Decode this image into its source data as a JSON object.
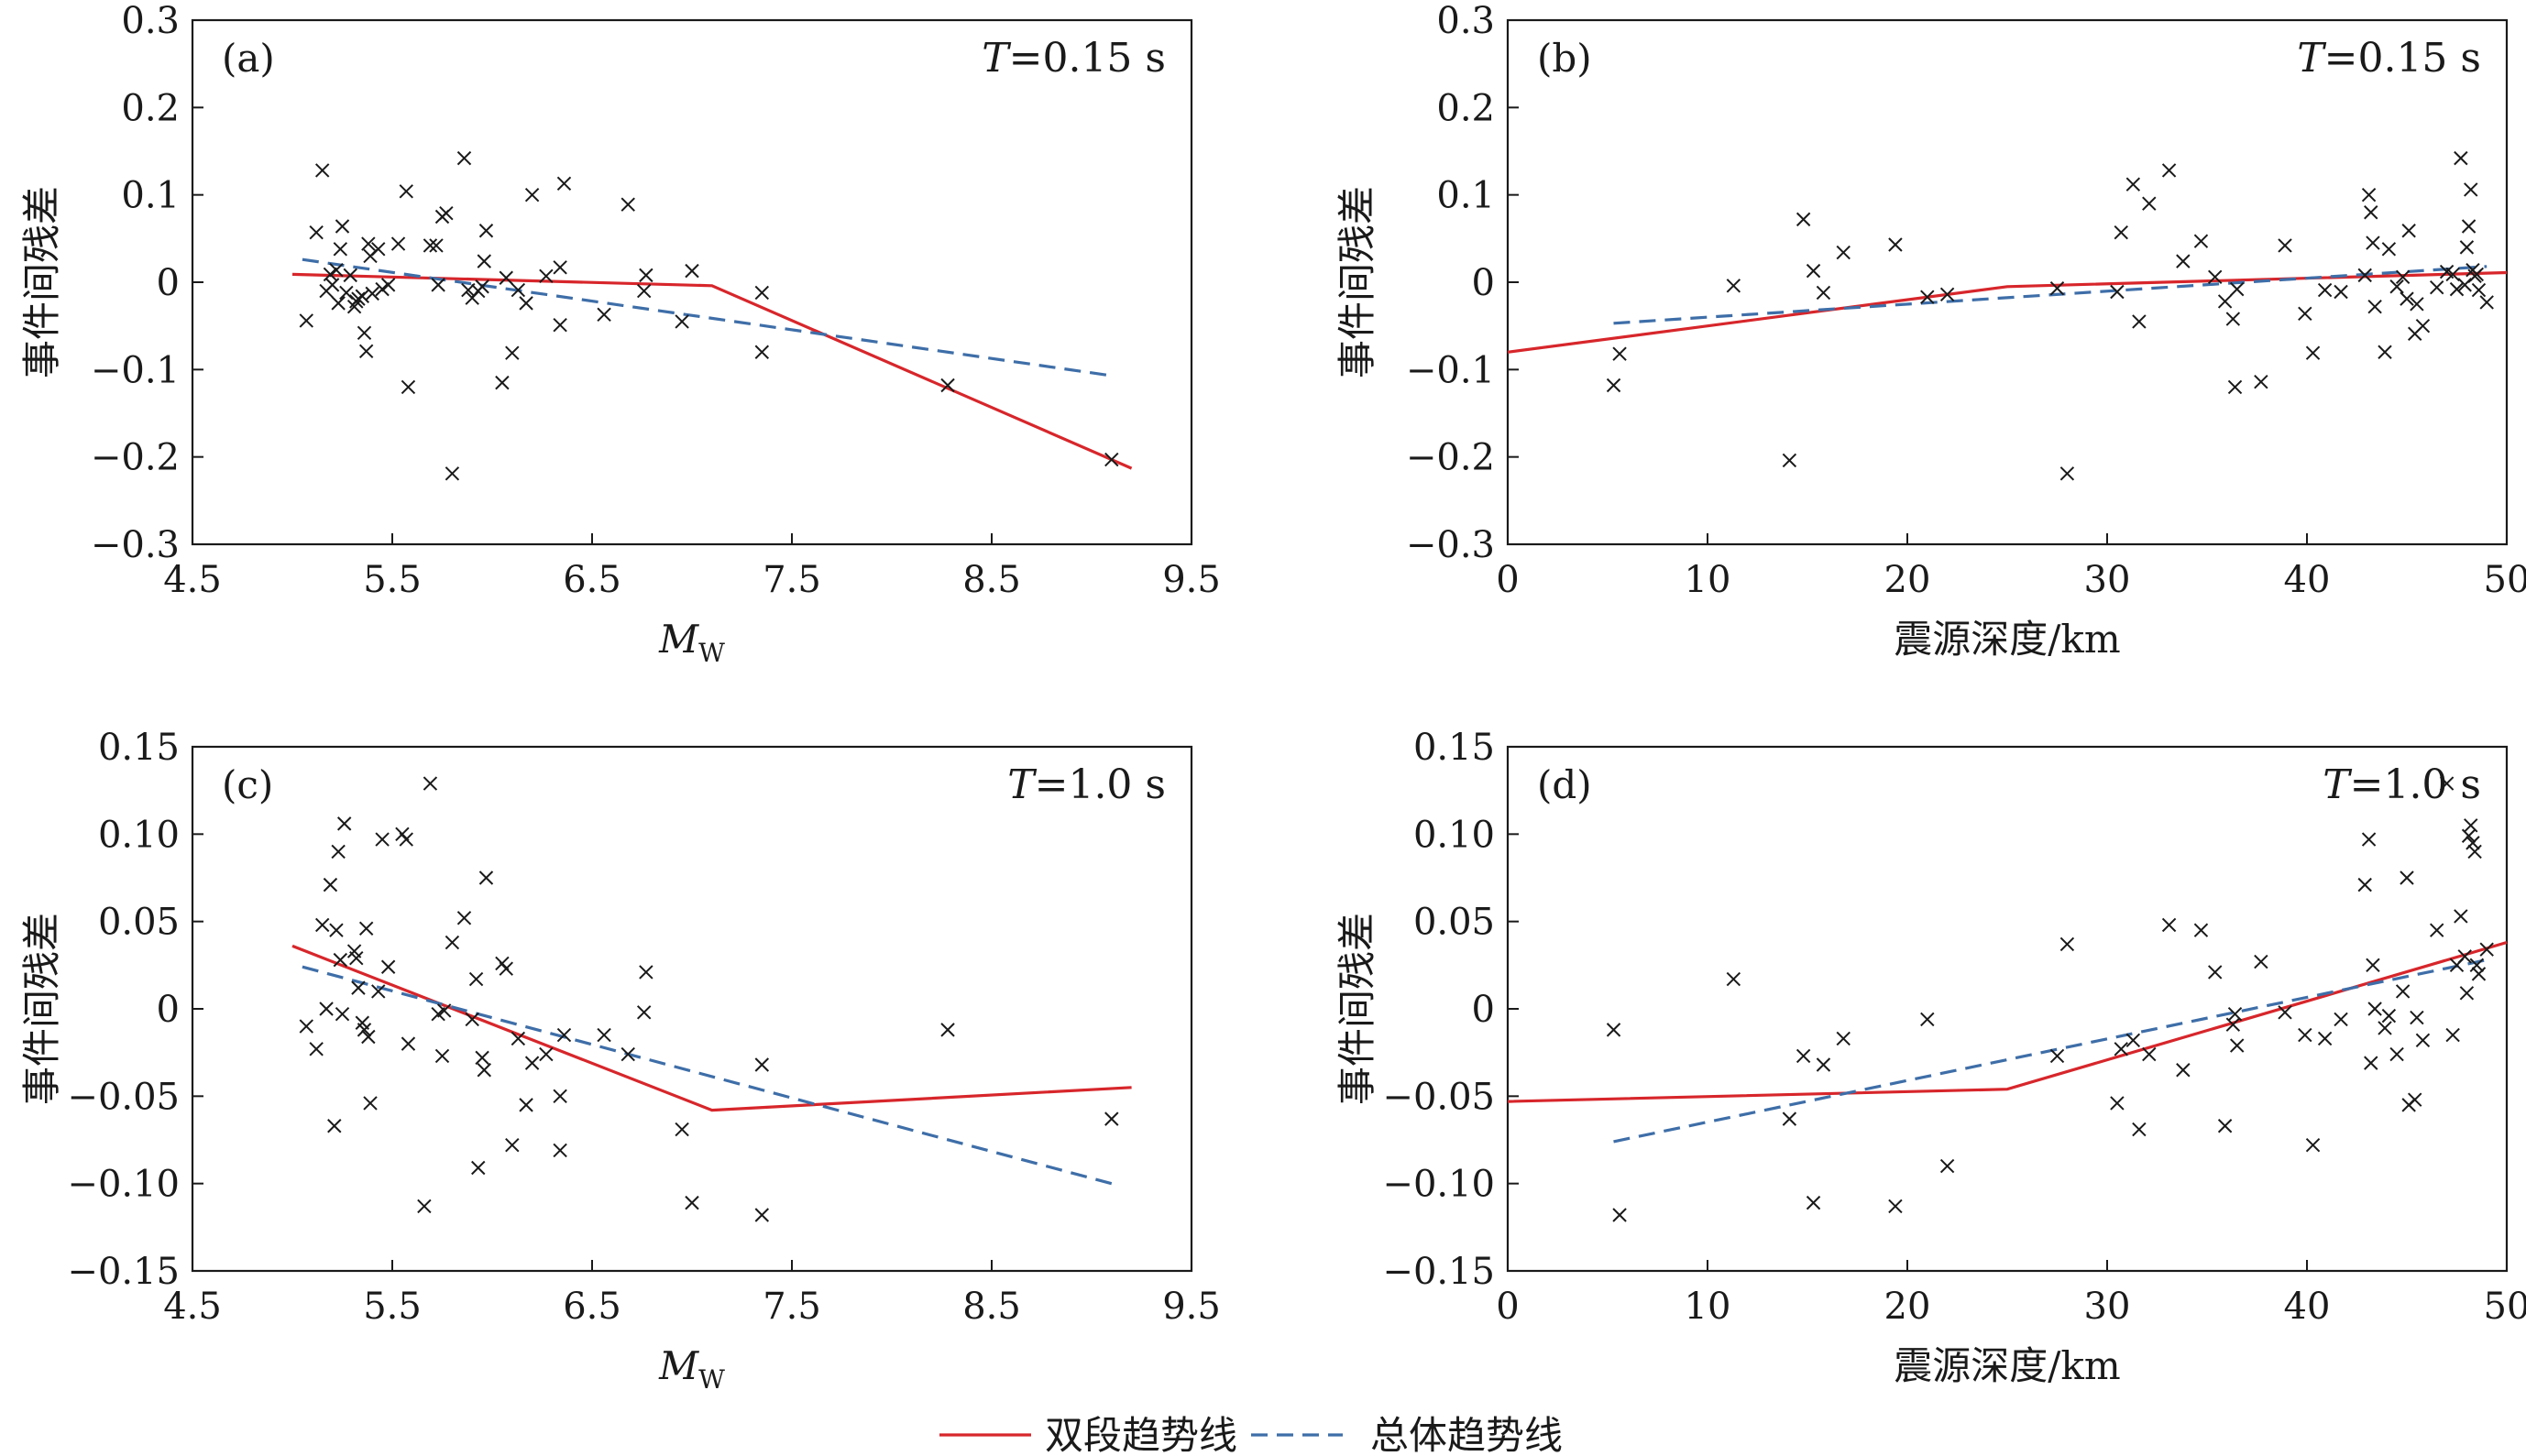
{
  "colors": {
    "two_segment": "#d7262b",
    "overall": "#3e6ea8",
    "marker": "#1a1a1a",
    "axis": "#1a1a1a"
  },
  "legend": {
    "two_segment_label": "双段趋势线",
    "overall_label": "总体趋势线"
  },
  "chart_data": [
    {
      "type": "scatter",
      "panel_label": "(a)",
      "period_label_symbol": "T",
      "period_label_value": "=0.15 s",
      "xlabel_main": "M",
      "xlabel_sub": "W",
      "ylabel": "事件间残差",
      "xlim": [
        4.5,
        9.5
      ],
      "ylim": [
        -0.3,
        0.3
      ],
      "xticks": [
        4.5,
        5.5,
        6.5,
        7.5,
        8.5,
        9.5
      ],
      "yticks": [
        -0.3,
        -0.2,
        -0.1,
        0,
        0.1,
        0.2,
        0.3
      ],
      "xtick_labels": [
        "4.5",
        "5.5",
        "6.5",
        "7.5",
        "8.5",
        "9.5"
      ],
      "ytick_labels": [
        "−0.3",
        "−0.2",
        "−0.1",
        "0",
        "0.1",
        "0.2",
        "0.3"
      ],
      "grid": false,
      "points": [
        [
          5.07,
          -0.044
        ],
        [
          5.12,
          0.057
        ],
        [
          5.15,
          0.128
        ],
        [
          5.17,
          -0.01
        ],
        [
          5.19,
          0.009
        ],
        [
          5.2,
          -0.003
        ],
        [
          5.22,
          0.014
        ],
        [
          5.23,
          -0.024
        ],
        [
          5.24,
          0.038
        ],
        [
          5.25,
          0.064
        ],
        [
          5.27,
          -0.012
        ],
        [
          5.29,
          0.008
        ],
        [
          5.31,
          -0.028
        ],
        [
          5.32,
          -0.022
        ],
        [
          5.33,
          -0.019
        ],
        [
          5.35,
          -0.016
        ],
        [
          5.36,
          -0.058
        ],
        [
          5.37,
          -0.079
        ],
        [
          5.38,
          0.044
        ],
        [
          5.39,
          0.03
        ],
        [
          5.4,
          -0.013
        ],
        [
          5.43,
          0.038
        ],
        [
          5.45,
          -0.008
        ],
        [
          5.48,
          -0.003
        ],
        [
          5.53,
          0.044
        ],
        [
          5.57,
          0.104
        ],
        [
          5.58,
          -0.12
        ],
        [
          5.69,
          0.042
        ],
        [
          5.72,
          0.042
        ],
        [
          5.73,
          -0.003
        ],
        [
          5.75,
          0.075
        ],
        [
          5.77,
          0.079
        ],
        [
          5.8,
          -0.219
        ],
        [
          5.86,
          0.142
        ],
        [
          5.88,
          -0.009
        ],
        [
          5.9,
          -0.018
        ],
        [
          5.93,
          -0.01
        ],
        [
          5.95,
          -0.005
        ],
        [
          5.96,
          0.024
        ],
        [
          5.97,
          0.059
        ],
        [
          6.05,
          -0.115
        ],
        [
          6.07,
          0.005
        ],
        [
          6.1,
          -0.081
        ],
        [
          6.13,
          -0.009
        ],
        [
          6.17,
          -0.024
        ],
        [
          6.2,
          0.1
        ],
        [
          6.27,
          0.007
        ],
        [
          6.34,
          0.017
        ],
        [
          6.34,
          -0.049
        ],
        [
          6.36,
          0.113
        ],
        [
          6.56,
          -0.037
        ],
        [
          6.68,
          0.089
        ],
        [
          6.76,
          -0.01
        ],
        [
          6.77,
          0.008
        ],
        [
          6.95,
          -0.045
        ],
        [
          7.0,
          0.013
        ],
        [
          7.35,
          -0.012
        ],
        [
          7.35,
          -0.08
        ],
        [
          8.28,
          -0.118
        ],
        [
          9.1,
          -0.203
        ]
      ],
      "series": [
        {
          "name": "双段趋势线",
          "x": [
            5.0,
            7.1,
            9.2
          ],
          "values": [
            0.009,
            -0.004,
            -0.213
          ]
        },
        {
          "name": "总体趋势线",
          "x": [
            5.05,
            9.1
          ],
          "values": [
            0.026,
            -0.107
          ]
        }
      ]
    },
    {
      "type": "scatter",
      "panel_label": "(b)",
      "period_label_symbol": "T",
      "period_label_value": "=0.15 s",
      "xlabel_main": "震源深度/km",
      "xlabel_sub": "",
      "ylabel": "事件间残差",
      "xlim": [
        0,
        50
      ],
      "ylim": [
        -0.3,
        0.3
      ],
      "xticks": [
        0,
        10,
        20,
        30,
        40,
        50
      ],
      "yticks": [
        -0.3,
        -0.2,
        -0.1,
        0,
        0.1,
        0.2,
        0.3
      ],
      "xtick_labels": [
        "0",
        "10",
        "20",
        "30",
        "40",
        "50"
      ],
      "ytick_labels": [
        "−0.3",
        "−0.2",
        "−0.1",
        "0",
        "0.1",
        "0.2",
        "0.3"
      ],
      "grid": false,
      "points": [
        [
          5.3,
          -0.118
        ],
        [
          5.6,
          -0.082
        ],
        [
          11.3,
          -0.004
        ],
        [
          14.1,
          -0.204
        ],
        [
          14.8,
          0.072
        ],
        [
          15.3,
          0.013
        ],
        [
          15.8,
          -0.012
        ],
        [
          16.8,
          0.034
        ],
        [
          19.4,
          0.043
        ],
        [
          21.0,
          -0.017
        ],
        [
          22.0,
          -0.014
        ],
        [
          27.5,
          -0.007
        ],
        [
          28.0,
          -0.219
        ],
        [
          30.5,
          -0.011
        ],
        [
          30.7,
          0.057
        ],
        [
          31.3,
          0.112
        ],
        [
          31.6,
          -0.045
        ],
        [
          32.1,
          0.09
        ],
        [
          33.1,
          0.128
        ],
        [
          33.8,
          0.024
        ],
        [
          34.7,
          0.047
        ],
        [
          35.4,
          0.006
        ],
        [
          35.9,
          -0.022
        ],
        [
          36.3,
          -0.042
        ],
        [
          36.4,
          -0.12
        ],
        [
          36.5,
          -0.008
        ],
        [
          37.7,
          -0.114
        ],
        [
          38.9,
          0.042
        ],
        [
          39.9,
          -0.036
        ],
        [
          40.3,
          -0.081
        ],
        [
          40.9,
          -0.009
        ],
        [
          41.7,
          -0.011
        ],
        [
          42.9,
          0.008
        ],
        [
          43.1,
          0.1
        ],
        [
          43.2,
          0.08
        ],
        [
          43.3,
          0.045
        ],
        [
          43.4,
          -0.028
        ],
        [
          43.9,
          -0.08
        ],
        [
          44.1,
          0.038
        ],
        [
          44.5,
          -0.005
        ],
        [
          44.8,
          0.006
        ],
        [
          45.0,
          -0.019
        ],
        [
          45.1,
          0.059
        ],
        [
          45.4,
          -0.059
        ],
        [
          45.5,
          -0.025
        ],
        [
          45.8,
          -0.05
        ],
        [
          46.5,
          -0.006
        ],
        [
          47.0,
          0.012
        ],
        [
          47.3,
          0.009
        ],
        [
          47.5,
          -0.008
        ],
        [
          47.7,
          0.142
        ],
        [
          47.9,
          -0.003
        ],
        [
          48.0,
          0.04
        ],
        [
          48.1,
          0.064
        ],
        [
          48.2,
          0.106
        ],
        [
          48.3,
          0.014
        ],
        [
          48.4,
          0.007
        ],
        [
          48.5,
          0.009
        ],
        [
          48.6,
          -0.009
        ],
        [
          49.0,
          -0.023
        ]
      ],
      "series": [
        {
          "name": "双段趋势线",
          "x": [
            0,
            25,
            50
          ],
          "values": [
            -0.08,
            -0.005,
            0.011
          ]
        },
        {
          "name": "总体趋势线",
          "x": [
            5.3,
            49.0
          ],
          "values": [
            -0.047,
            0.018
          ]
        }
      ]
    },
    {
      "type": "scatter",
      "panel_label": "(c)",
      "period_label_symbol": "T",
      "period_label_value": "=1.0 s",
      "xlabel_main": "M",
      "xlabel_sub": "W",
      "ylabel": "事件间残差",
      "xlim": [
        4.5,
        9.5
      ],
      "ylim": [
        -0.15,
        0.15
      ],
      "xticks": [
        4.5,
        5.5,
        6.5,
        7.5,
        8.5,
        9.5
      ],
      "yticks": [
        -0.15,
        -0.1,
        -0.05,
        0,
        0.05,
        0.1,
        0.15
      ],
      "xtick_labels": [
        "4.5",
        "5.5",
        "6.5",
        "7.5",
        "8.5",
        "9.5"
      ],
      "ytick_labels": [
        "−0.15",
        "−0.10",
        "−0.05",
        "0",
        "0.05",
        "0.10",
        "0.15"
      ],
      "grid": false,
      "points": [
        [
          5.07,
          -0.01
        ],
        [
          5.12,
          -0.023
        ],
        [
          5.15,
          0.048
        ],
        [
          5.17,
          0.0
        ],
        [
          5.19,
          0.071
        ],
        [
          5.21,
          -0.067
        ],
        [
          5.22,
          0.045
        ],
        [
          5.23,
          0.09
        ],
        [
          5.24,
          0.028
        ],
        [
          5.25,
          -0.003
        ],
        [
          5.26,
          0.106
        ],
        [
          5.31,
          0.033
        ],
        [
          5.32,
          0.029
        ],
        [
          5.33,
          0.012
        ],
        [
          5.35,
          -0.008
        ],
        [
          5.36,
          -0.012
        ],
        [
          5.37,
          0.046
        ],
        [
          5.38,
          -0.016
        ],
        [
          5.39,
          -0.054
        ],
        [
          5.43,
          0.01
        ],
        [
          5.45,
          0.097
        ],
        [
          5.48,
          0.024
        ],
        [
          5.55,
          0.1
        ],
        [
          5.57,
          0.097
        ],
        [
          5.58,
          -0.02
        ],
        [
          5.66,
          -0.113
        ],
        [
          5.69,
          0.129
        ],
        [
          5.73,
          -0.003
        ],
        [
          5.75,
          -0.027
        ],
        [
          5.76,
          -0.001
        ],
        [
          5.8,
          0.038
        ],
        [
          5.86,
          0.052
        ],
        [
          5.9,
          -0.006
        ],
        [
          5.92,
          0.017
        ],
        [
          5.93,
          -0.091
        ],
        [
          5.95,
          -0.028
        ],
        [
          5.96,
          -0.035
        ],
        [
          5.97,
          0.075
        ],
        [
          6.05,
          0.026
        ],
        [
          6.07,
          0.023
        ],
        [
          6.1,
          -0.078
        ],
        [
          6.13,
          -0.017
        ],
        [
          6.17,
          -0.055
        ],
        [
          6.2,
          -0.031
        ],
        [
          6.27,
          -0.026
        ],
        [
          6.34,
          -0.05
        ],
        [
          6.34,
          -0.081
        ],
        [
          6.36,
          -0.015
        ],
        [
          6.56,
          -0.015
        ],
        [
          6.68,
          -0.026
        ],
        [
          6.76,
          -0.002
        ],
        [
          6.77,
          0.021
        ],
        [
          6.95,
          -0.069
        ],
        [
          7.0,
          -0.111
        ],
        [
          7.35,
          -0.032
        ],
        [
          7.35,
          -0.118
        ],
        [
          8.28,
          -0.012
        ],
        [
          9.1,
          -0.063
        ]
      ],
      "series": [
        {
          "name": "双段趋势线",
          "x": [
            5.0,
            7.1,
            9.2
          ],
          "values": [
            0.036,
            -0.058,
            -0.045
          ]
        },
        {
          "name": "总体趋势线",
          "x": [
            5.05,
            9.1
          ],
          "values": [
            0.024,
            -0.1
          ]
        }
      ]
    },
    {
      "type": "scatter",
      "panel_label": "(d)",
      "period_label_symbol": "T",
      "period_label_value": "=1.0 s",
      "xlabel_main": "震源深度/km",
      "xlabel_sub": "",
      "ylabel": "事件间残差",
      "xlim": [
        0,
        50
      ],
      "ylim": [
        -0.15,
        0.15
      ],
      "xticks": [
        0,
        10,
        20,
        30,
        40,
        50
      ],
      "yticks": [
        -0.15,
        -0.1,
        -0.05,
        0,
        0.05,
        0.1,
        0.15
      ],
      "xtick_labels": [
        "0",
        "10",
        "20",
        "30",
        "40",
        "50"
      ],
      "ytick_labels": [
        "−0.15",
        "−0.10",
        "−0.05",
        "0",
        "0.05",
        "0.10",
        "0.15"
      ],
      "grid": false,
      "points": [
        [
          5.3,
          -0.012
        ],
        [
          5.6,
          -0.118
        ],
        [
          11.3,
          0.017
        ],
        [
          14.1,
          -0.063
        ],
        [
          14.8,
          -0.027
        ],
        [
          15.3,
          -0.111
        ],
        [
          15.8,
          -0.032
        ],
        [
          16.8,
          -0.017
        ],
        [
          19.4,
          -0.113
        ],
        [
          21.0,
          -0.006
        ],
        [
          22.0,
          -0.09
        ],
        [
          27.5,
          -0.027
        ],
        [
          28.0,
          0.037
        ],
        [
          30.5,
          -0.054
        ],
        [
          30.7,
          -0.023
        ],
        [
          31.3,
          -0.018
        ],
        [
          31.6,
          -0.069
        ],
        [
          32.1,
          -0.026
        ],
        [
          33.1,
          0.048
        ],
        [
          33.8,
          -0.035
        ],
        [
          34.7,
          0.045
        ],
        [
          35.4,
          0.021
        ],
        [
          35.9,
          -0.067
        ],
        [
          36.3,
          -0.009
        ],
        [
          36.4,
          -0.003
        ],
        [
          36.5,
          -0.021
        ],
        [
          37.7,
          0.027
        ],
        [
          38.9,
          -0.002
        ],
        [
          39.9,
          -0.015
        ],
        [
          40.3,
          -0.078
        ],
        [
          40.9,
          -0.017
        ],
        [
          41.7,
          -0.006
        ],
        [
          42.9,
          0.071
        ],
        [
          43.1,
          0.097
        ],
        [
          43.2,
          -0.031
        ],
        [
          43.3,
          0.025
        ],
        [
          43.4,
          0.0
        ],
        [
          43.9,
          -0.011
        ],
        [
          44.1,
          -0.004
        ],
        [
          44.5,
          -0.026
        ],
        [
          44.8,
          0.01
        ],
        [
          45.0,
          0.075
        ],
        [
          45.1,
          -0.055
        ],
        [
          45.4,
          -0.052
        ],
        [
          45.5,
          -0.005
        ],
        [
          45.8,
          -0.018
        ],
        [
          46.5,
          0.045
        ],
        [
          47.0,
          0.129
        ],
        [
          47.3,
          -0.015
        ],
        [
          47.5,
          0.025
        ],
        [
          47.7,
          0.053
        ],
        [
          47.9,
          0.03
        ],
        [
          48.0,
          0.009
        ],
        [
          48.1,
          0.099
        ],
        [
          48.2,
          0.105
        ],
        [
          48.3,
          0.095
        ],
        [
          48.4,
          0.09
        ],
        [
          48.5,
          0.025
        ],
        [
          48.6,
          0.02
        ],
        [
          49.0,
          0.034
        ]
      ],
      "series": [
        {
          "name": "双段趋势线",
          "x": [
            0,
            25,
            50
          ],
          "values": [
            -0.053,
            -0.046,
            0.038
          ]
        },
        {
          "name": "总体趋势线",
          "x": [
            5.3,
            49.0
          ],
          "values": [
            -0.076,
            0.028
          ]
        }
      ]
    }
  ]
}
